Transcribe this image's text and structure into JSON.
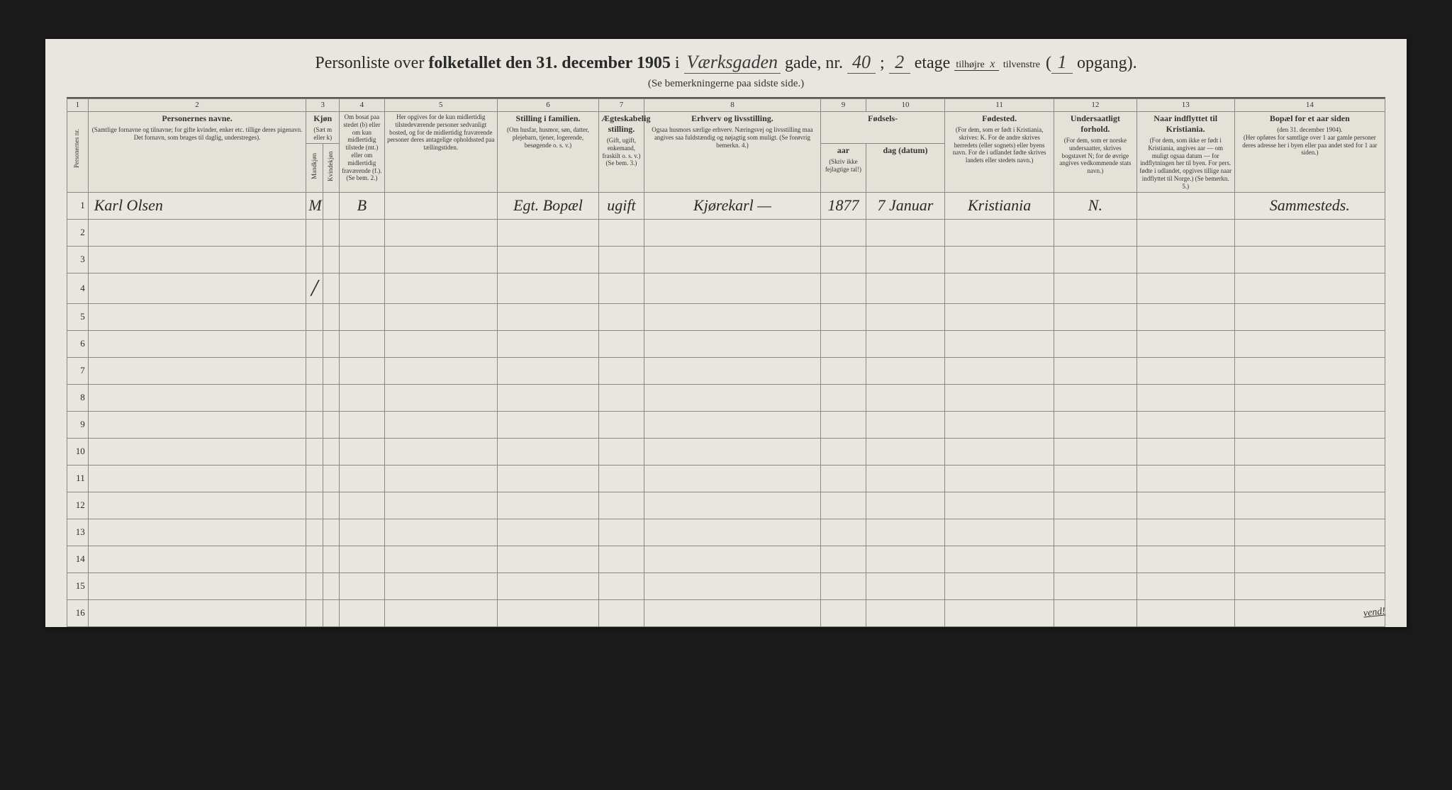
{
  "title": {
    "prefix": "Personliste over",
    "bold": "folketallet den 31. december 1905",
    "i": "i",
    "street_written": "Værksgaden",
    "gade_nr": "gade, nr.",
    "nr_written": "40",
    "semicolon": ";",
    "etage_written": "2",
    "etage": "etage",
    "tilhoire": "tilhøjre",
    "tilhoire_mark": "x",
    "tilvenstre": "tilvenstre",
    "paren_open": "(",
    "opgang_written": "1",
    "opgang": "opgang)."
  },
  "subtitle": "(Se bemerkningerne paa sidste side.)",
  "columns": {
    "nums": [
      "1",
      "2",
      "3",
      "4",
      "5",
      "6",
      "7",
      "8",
      "9",
      "10",
      "11",
      "12",
      "13",
      "14"
    ],
    "c1": {
      "title": "Personernes nr."
    },
    "c2": {
      "title": "Personernes navne.",
      "sub": "(Samtlige fornavne og tilnavne; for gifte kvinder, enker etc. tillige deres pigenavn. Det fornavn, som bruges til daglig, understreges)."
    },
    "c3": {
      "title": "Kjøn",
      "sub": "(Sæt m eller k)",
      "sub2a": "Mandkjøn",
      "sub2b": "Kvindekjøn"
    },
    "c4": {
      "title": "",
      "sub": "Om bosat paa stedet (b) eller om kun midlertidig tilstede (mt.) eller om midlertidig fraværende (f.). (Se bem. 2.)"
    },
    "c5": {
      "title": "",
      "sub": "Her opgives for de kun midlertidig tilstedeværende personer sedvanligt bosted, og for de midlertidig fraværende personer deres antagelige opholdssted paa tællingstiden."
    },
    "c6": {
      "title": "Stilling i familien.",
      "sub": "(Om husfar, husmor, søn, datter, plejebarn, tjener, logerende, besøgende o. s. v.)"
    },
    "c7": {
      "title": "Ægteskabelig stilling.",
      "sub": "(Gift, ugift, enkemand, fraskilt o. s. v.) (Se bem. 3.)"
    },
    "c8": {
      "title": "Erhverv og livsstilling.",
      "sub": "Ogsaa husmors særlige erhverv. Næringsvej og livsstilling maa angives saa fuldstændig og nøjagtig som muligt. (Se forøvrig bemerkn. 4.)"
    },
    "c9_10": {
      "title": "Fødsels-",
      "c9": "aar",
      "c10": "dag (datum)",
      "sub": "(Skriv ikke fejlagtige tal!)"
    },
    "c11": {
      "title": "Fødested.",
      "sub": "(For dem, som er født i Kristiania, skrives: K. For de andre skrives herredets (eller sognets) eller byens navn. For de i udlandet fødte skrives landets eller stedets navn.)"
    },
    "c12": {
      "title": "Undersaatligt forhold.",
      "sub": "(For dem, som er norske undersaatter, skrives bogstavet N; for de øvrige angives vedkommende stats navn.)"
    },
    "c13": {
      "title": "Naar indflyttet til Kristiania.",
      "sub": "(For dem, som ikke er født i Kristiania, angives aar — om muligt ogsaa datum — for indflytningen her til byen. For pers. fødte i udlandet, opgives tillige naar indflyttet til Norge.) (Se bemerkn. 5.)"
    },
    "c14": {
      "title": "Bopæl for et aar siden",
      "sub1": "(den 31. december 1904).",
      "sub2": "(Her opføres for samtlige over 1 aar gamle personer deres adresse her i byen eller paa andet sted for 1 aar siden.)"
    }
  },
  "rows": [
    {
      "num": "1",
      "mark": "✕",
      "name": "Karl   Olsen",
      "sex": "M",
      "bosat": "B",
      "temp": "",
      "stilling": "Egt. Bopæl",
      "aegte": "ugift",
      "erhverv": "Kjørekarl     —",
      "aar": "1877",
      "dag": "7 Januar",
      "fodested": "Kristiania",
      "under": "N.",
      "indfly": "",
      "bopael": "Sammesteds."
    },
    {
      "num": "2"
    },
    {
      "num": "3"
    },
    {
      "num": "4",
      "sex_stroke": "/"
    },
    {
      "num": "5"
    },
    {
      "num": "6"
    },
    {
      "num": "7"
    },
    {
      "num": "8"
    },
    {
      "num": "9"
    },
    {
      "num": "10"
    },
    {
      "num": "11"
    },
    {
      "num": "12"
    },
    {
      "num": "13"
    },
    {
      "num": "14"
    },
    {
      "num": "15"
    },
    {
      "num": "16"
    }
  ],
  "vend": "vend!"
}
